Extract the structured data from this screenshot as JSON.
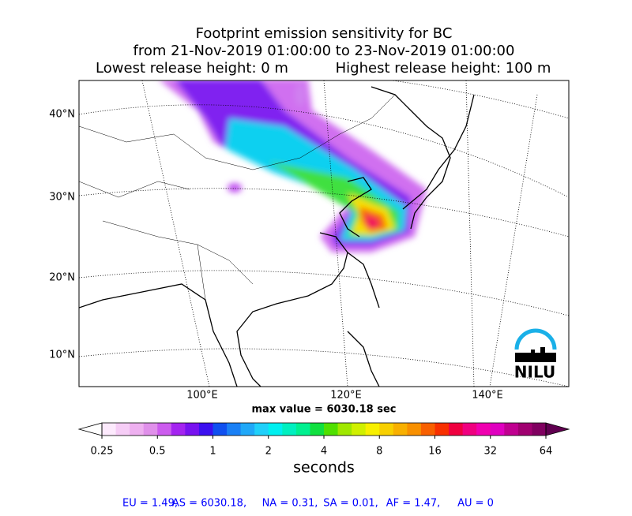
{
  "title_lines": [
    "Footprint emission sensitivity for BC",
    "from 21-Nov-2019 01:00:00 to 23-Nov-2019 01:00:00"
  ],
  "lowest_release": "Lowest release height: 0 m",
  "highest_release": "Highest release height: 100 m",
  "lat_labels": [
    "40°N",
    "30°N",
    "20°N",
    "10°N"
  ],
  "lon_labels": [
    "100°E",
    "120°E",
    "140°E"
  ],
  "max_value": "max value = 6030.18 sec",
  "logo": "NILU",
  "colorbar": {
    "label": "seconds",
    "clim": [
      0.25,
      64
    ],
    "ticks": [
      0.25,
      0.5,
      1,
      2,
      4,
      8,
      16,
      32,
      64
    ],
    "log_scale": true,
    "under_color": "#ffffff",
    "over_color": "#600050",
    "colors": [
      "#fdeafd",
      "#f6cdf6",
      "#eeb0f0",
      "#e090ea",
      "#cc5cee",
      "#a424f0",
      "#7812f0",
      "#3c10f0",
      "#1050f0",
      "#1a80f5",
      "#20a8f8",
      "#20d0fa",
      "#00f0f0",
      "#00f0c0",
      "#00f090",
      "#10e040",
      "#50e000",
      "#a0e800",
      "#d0f000",
      "#f8f000",
      "#f8d000",
      "#f8b000",
      "#f89000",
      "#f86000",
      "#f83000",
      "#f00040",
      "#f00080",
      "#f000b0",
      "#e000c0",
      "#c00090",
      "#a00070",
      "#800060"
    ]
  },
  "region_totals": [
    "EU = 1.49,",
    "AS = 6030.18,",
    "NA = 0.31,",
    "SA = 0.01,",
    "AF = 1.47,",
    "AU = 0"
  ]
}
